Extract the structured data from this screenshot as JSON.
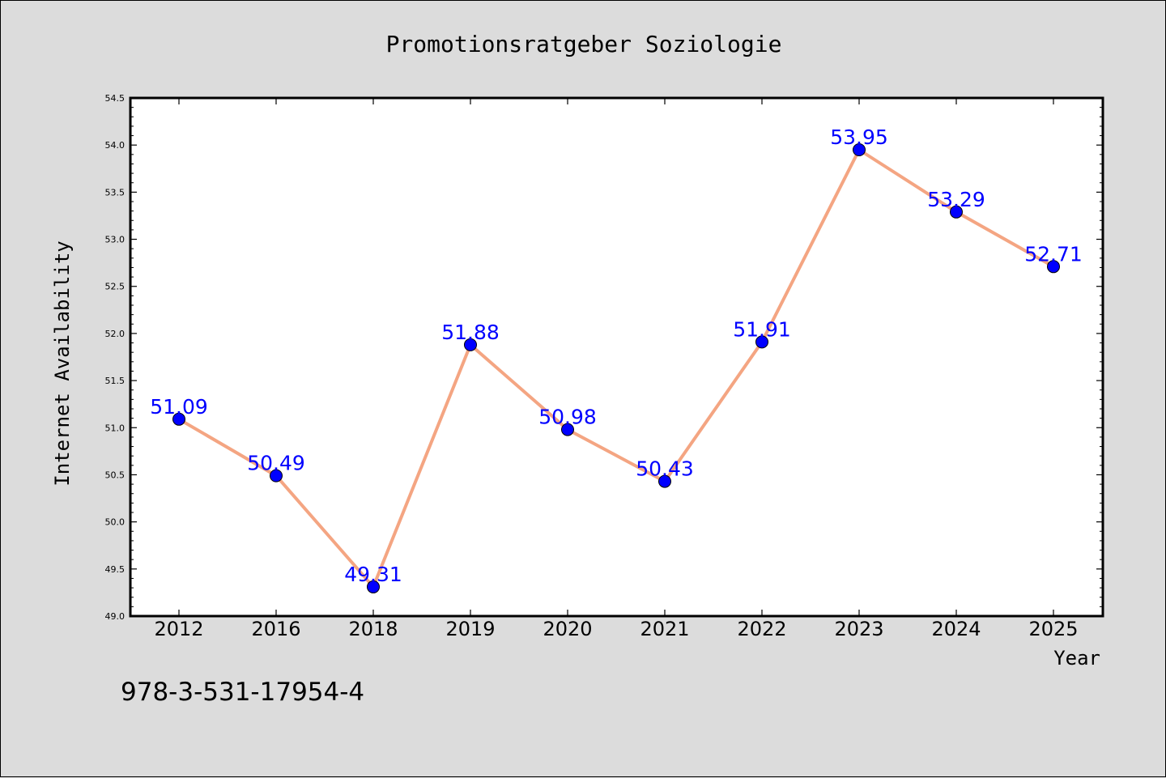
{
  "chart_data": {
    "type": "line",
    "title": "Promotionsratgeber Soziologie",
    "xlabel": "Year",
    "ylabel": "Internet Availability",
    "categories": [
      "2012",
      "2016",
      "2018",
      "2019",
      "2020",
      "2021",
      "2022",
      "2023",
      "2024",
      "2025"
    ],
    "series": [
      {
        "values": [
          51.09,
          50.49,
          49.31,
          51.88,
          50.98,
          50.43,
          51.91,
          53.95,
          53.29,
          52.71
        ],
        "labels": [
          "51.09",
          "50.49",
          "49.31",
          "51.88",
          "50.98",
          "50.43",
          "51.91",
          "53.95",
          "53.29",
          "52.71"
        ],
        "line_color": "#f4a582",
        "marker_color": "#0000ff"
      }
    ],
    "ylim": [
      49.0,
      54.5
    ],
    "yticks": [
      "49.0",
      "49.5",
      "50.0",
      "50.5",
      "51.0",
      "51.5",
      "52.0",
      "52.5",
      "53.0",
      "53.5",
      "54.0",
      "54.5"
    ],
    "grid": false,
    "label_color": "#0000ff"
  },
  "caption": "978-3-531-17954-4"
}
